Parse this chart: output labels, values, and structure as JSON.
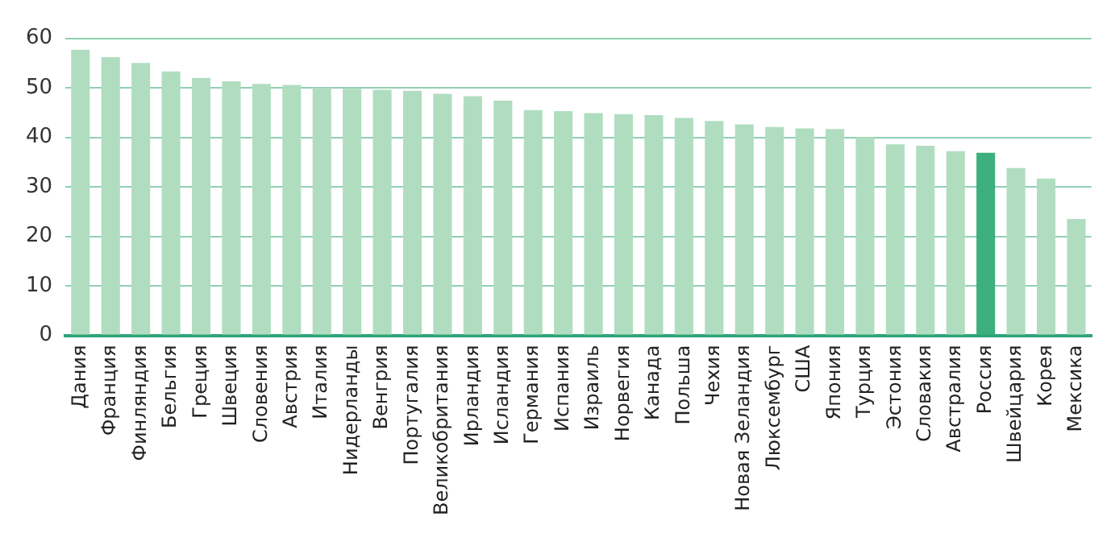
{
  "chart_data": {
    "type": "bar",
    "categories": [
      "Дания",
      "Франция",
      "Финляндия",
      "Бельгия",
      "Греция",
      "Швеция",
      "Словения",
      "Австрия",
      "Италия",
      "Нидерланды",
      "Венгрия",
      "Португалия",
      "Великобритания",
      "Ирландия",
      "Исландия",
      "Германия",
      "Испания",
      "Израиль",
      "Норвегия",
      "Канада",
      "Польша",
      "Чехия",
      "Новая Зеландия",
      "Люксембург",
      "США",
      "Япония",
      "Турция",
      "Эстония",
      "Словакия",
      "Австралия",
      "Россия",
      "Швейцария",
      "Корея",
      "Мексика"
    ],
    "values": [
      57.7,
      56.2,
      55,
      53.3,
      52,
      51.3,
      50.8,
      50.6,
      50,
      49.8,
      49.6,
      49.4,
      48.8,
      48.3,
      47.4,
      45.5,
      45.3,
      44.9,
      44.7,
      44.5,
      43.9,
      43.3,
      42.6,
      42.1,
      41.8,
      41.7,
      40,
      38.6,
      38.3,
      37.2,
      36.9,
      33.8,
      31.7,
      23.5
    ],
    "colors": [
      "#b0ddc0",
      "#b0ddc0",
      "#b0ddc0",
      "#b0ddc0",
      "#b0ddc0",
      "#b0ddc0",
      "#b0ddc0",
      "#b0ddc0",
      "#b0ddc0",
      "#b0ddc0",
      "#b0ddc0",
      "#b0ddc0",
      "#b0ddc0",
      "#b0ddc0",
      "#b0ddc0",
      "#b0ddc0",
      "#b0ddc0",
      "#b0ddc0",
      "#b0ddc0",
      "#b0ddc0",
      "#b0ddc0",
      "#b0ddc0",
      "#b0ddc0",
      "#b0ddc0",
      "#b0ddc0",
      "#b0ddc0",
      "#b0ddc0",
      "#b0ddc0",
      "#b0ddc0",
      "#b0ddc0",
      "#3daf7f",
      "#b0ddc0",
      "#b0ddc0",
      "#b0ddc0"
    ],
    "ylim": [
      0,
      60
    ],
    "yticks": [
      0,
      10,
      20,
      30,
      40,
      50,
      60
    ],
    "grid": "y",
    "legend": false
  }
}
